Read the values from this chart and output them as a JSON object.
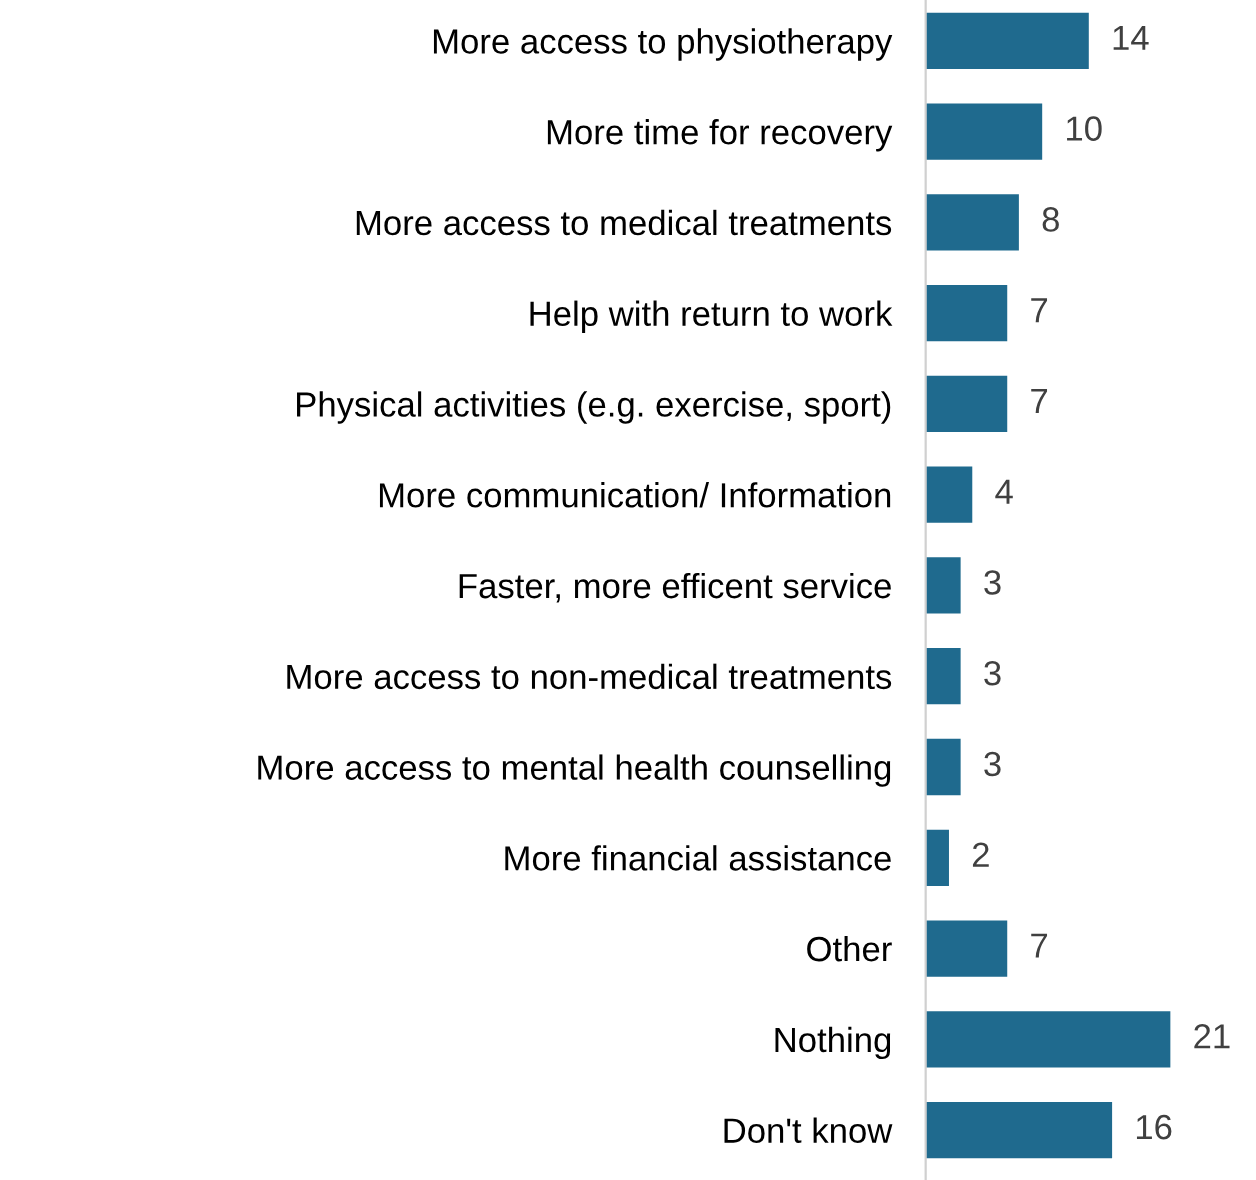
{
  "chart_data": {
    "type": "bar",
    "orientation": "horizontal",
    "data_labels": true,
    "grid": false,
    "legend": false,
    "categories": [
      "More access to physiotherapy",
      "More time for recovery",
      "More access to medical treatments",
      "Help with return to work",
      "Physical activities (e.g. exercise, sport)",
      "More communication/ Information",
      "Faster, more efficent service",
      "More access to non-medical treatments",
      "More access to mental health counselling",
      "More financial assistance",
      "Other",
      "Nothing",
      "Don't know"
    ],
    "values": [
      14,
      10,
      8,
      7,
      7,
      4,
      3,
      3,
      3,
      2,
      7,
      21,
      16
    ],
    "color": "#1f6a8e"
  }
}
